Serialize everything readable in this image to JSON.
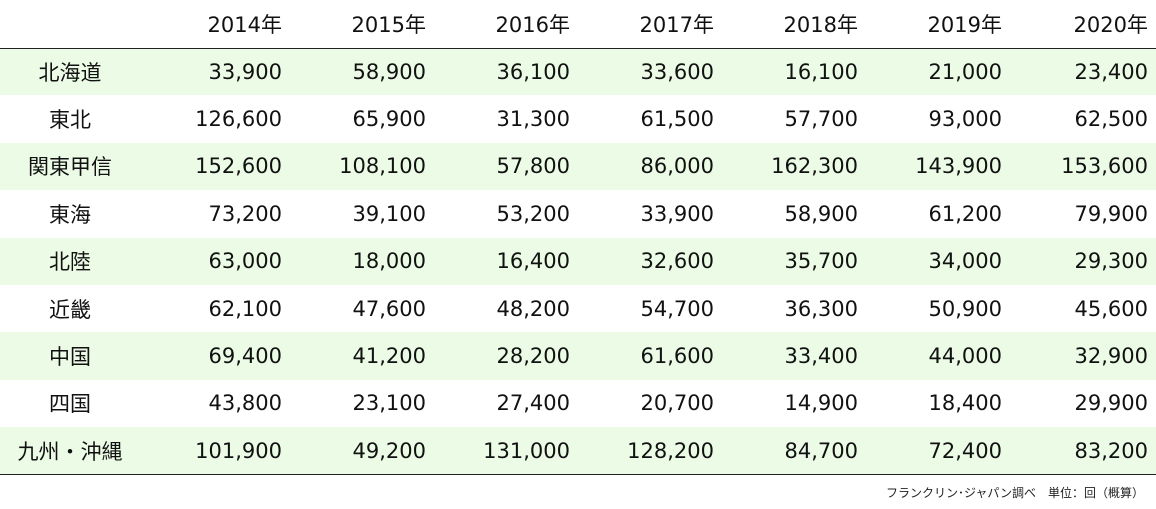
{
  "chart_data": {
    "type": "table",
    "columns": [
      "2014年",
      "2015年",
      "2016年",
      "2017年",
      "2018年",
      "2019年",
      "2020年"
    ],
    "rows": [
      {
        "label": "北海道",
        "values": [
          "33,900",
          "58,900",
          "36,100",
          "33,600",
          "16,100",
          "21,000",
          "23,400"
        ]
      },
      {
        "label": "東北",
        "values": [
          "126,600",
          "65,900",
          "31,300",
          "61,500",
          "57,700",
          "93,000",
          "62,500"
        ]
      },
      {
        "label": "関東甲信",
        "values": [
          "152,600",
          "108,100",
          "57,800",
          "86,000",
          "162,300",
          "143,900",
          "153,600"
        ]
      },
      {
        "label": "東海",
        "values": [
          "73,200",
          "39,100",
          "53,200",
          "33,900",
          "58,900",
          "61,200",
          "79,900"
        ]
      },
      {
        "label": "北陸",
        "values": [
          "63,000",
          "18,000",
          "16,400",
          "32,600",
          "35,700",
          "34,000",
          "29,300"
        ]
      },
      {
        "label": "近畿",
        "values": [
          "62,100",
          "47,600",
          "48,200",
          "54,700",
          "36,300",
          "50,900",
          "45,600"
        ]
      },
      {
        "label": "中国",
        "values": [
          "69,400",
          "41,200",
          "28,200",
          "61,600",
          "33,400",
          "44,000",
          "32,900"
        ]
      },
      {
        "label": "四国",
        "values": [
          "43,800",
          "23,100",
          "27,400",
          "20,700",
          "14,900",
          "18,400",
          "29,900"
        ]
      },
      {
        "label": "九州・沖縄",
        "values": [
          "101,900",
          "49,200",
          "131,000",
          "128,200",
          "84,700",
          "72,400",
          "83,200"
        ]
      }
    ],
    "source_note": "フランクリン･ジャパン調べ　単位：回（概算）"
  },
  "colors": {
    "row_band": "#ebfbe6",
    "rule": "#222222",
    "text": "#111111"
  }
}
